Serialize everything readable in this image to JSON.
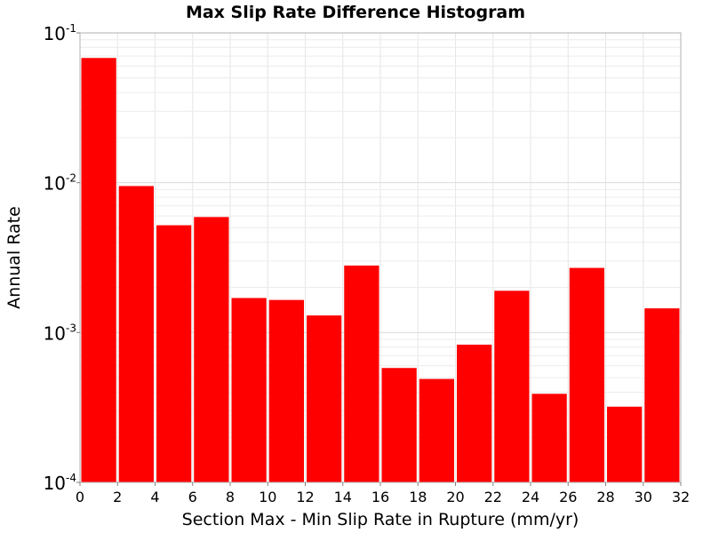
{
  "chart_data": {
    "type": "bar",
    "title": "Max Slip Rate Difference Histogram",
    "xlabel": "Section Max - Min Slip Rate in Rupture (mm/yr)",
    "ylabel": "Annual Rate",
    "y_scale": "log",
    "ylim": [
      0.0001,
      0.1
    ],
    "xlim": [
      0,
      32
    ],
    "grid": true,
    "bar_color": "#ff0000",
    "x_ticks": [
      "0",
      "2",
      "4",
      "6",
      "8",
      "10",
      "12",
      "14",
      "16",
      "18",
      "20",
      "22",
      "24",
      "26",
      "28",
      "30",
      "32"
    ],
    "y_ticks": [
      {
        "base": "10",
        "exp": "-4",
        "value": 0.0001
      },
      {
        "base": "10",
        "exp": "-3",
        "value": 0.001
      },
      {
        "base": "10",
        "exp": "-2",
        "value": 0.01
      },
      {
        "base": "10",
        "exp": "-1",
        "value": 0.1
      }
    ],
    "bins": [
      {
        "x": 1,
        "value": 0.068
      },
      {
        "x": 3,
        "value": 0.0095
      },
      {
        "x": 5,
        "value": 0.0052
      },
      {
        "x": 7,
        "value": 0.0059
      },
      {
        "x": 9,
        "value": 0.0017
      },
      {
        "x": 11,
        "value": 0.00165
      },
      {
        "x": 13,
        "value": 0.0013
      },
      {
        "x": 15,
        "value": 0.0028
      },
      {
        "x": 17,
        "value": 0.00058
      },
      {
        "x": 19,
        "value": 0.00049
      },
      {
        "x": 21,
        "value": 0.00083
      },
      {
        "x": 23,
        "value": 0.0019
      },
      {
        "x": 25,
        "value": 0.00039
      },
      {
        "x": 27,
        "value": 0.0027
      },
      {
        "x": 29,
        "value": 0.00032
      },
      {
        "x": 31,
        "value": 0.00145
      }
    ]
  }
}
